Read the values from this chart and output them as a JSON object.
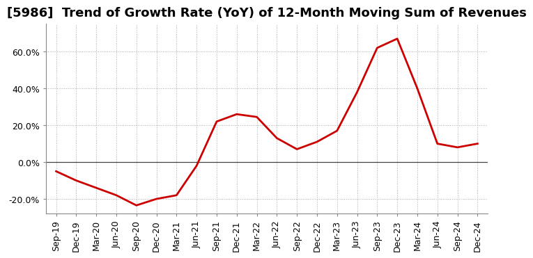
{
  "title": "[5986]  Trend of Growth Rate (YoY) of 12-Month Moving Sum of Revenues",
  "line_color": "#CC0000",
  "line_width": 2.0,
  "background_color": "#FFFFFF",
  "grid_color": "#AAAAAA",
  "x_labels": [
    "Sep-19",
    "Dec-19",
    "Mar-20",
    "Jun-20",
    "Sep-20",
    "Dec-20",
    "Mar-21",
    "Jun-21",
    "Sep-21",
    "Dec-21",
    "Mar-22",
    "Jun-22",
    "Sep-22",
    "Dec-22",
    "Mar-23",
    "Jun-23",
    "Sep-23",
    "Dec-23",
    "Mar-24",
    "Jun-24",
    "Sep-24",
    "Dec-24"
  ],
  "y_values": [
    -0.05,
    -0.1,
    -0.14,
    -0.18,
    -0.235,
    -0.2,
    -0.18,
    -0.02,
    0.22,
    0.26,
    0.245,
    0.13,
    0.07,
    0.11,
    0.17,
    0.38,
    0.62,
    0.67,
    0.4,
    0.1,
    0.08,
    0.1
  ],
  "ylim": [
    -0.28,
    0.75
  ],
  "yticks": [
    -0.2,
    0.0,
    0.2,
    0.4,
    0.6
  ],
  "ytick_labels": [
    "-20.0%",
    "0.0%",
    "20.0%",
    "40.0%",
    "60.0%"
  ],
  "title_fontsize": 13,
  "tick_fontsize": 9
}
